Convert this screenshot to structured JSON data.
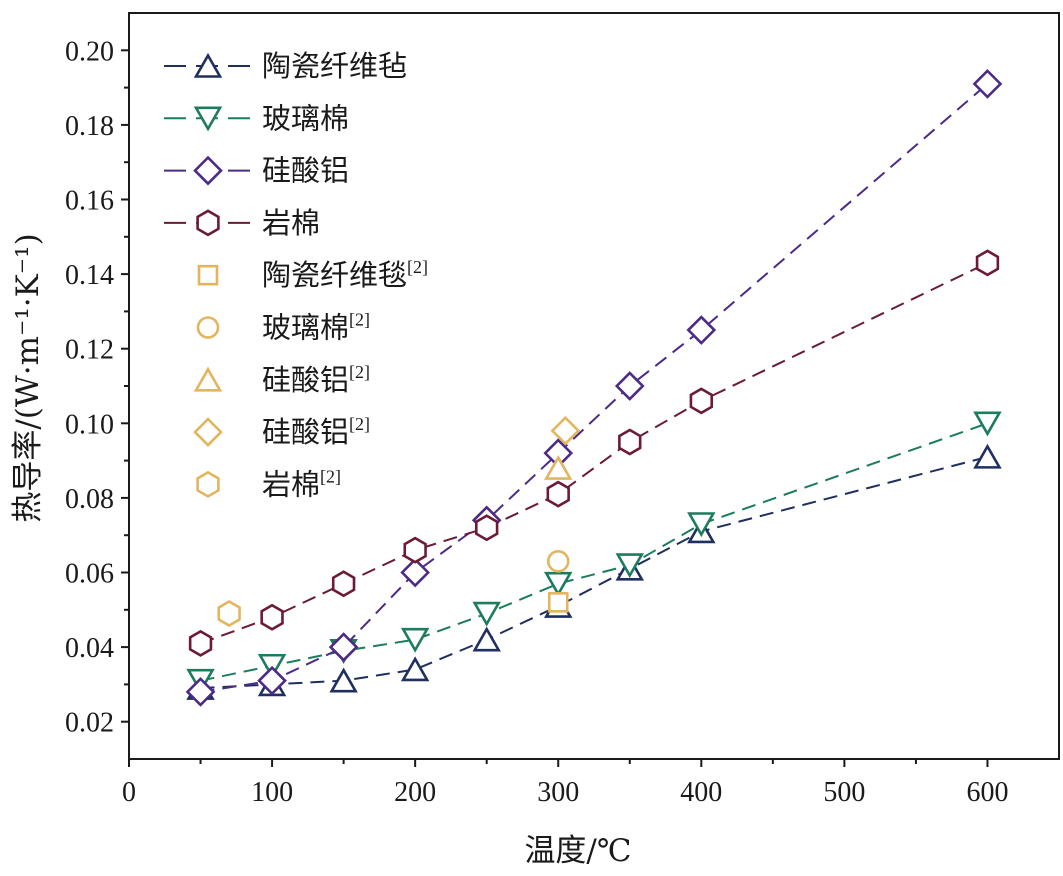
{
  "chart_data": {
    "type": "line",
    "xlabel": "温度/℃",
    "ylabel": "热导率/(W·m⁻¹·K⁻¹)",
    "xlim": [
      0,
      650
    ],
    "ylim": [
      0.01,
      0.21
    ],
    "xticks": [
      0,
      100,
      200,
      300,
      400,
      500,
      600
    ],
    "xtick_labels": [
      "0",
      "100",
      "200",
      "300",
      "400",
      "500",
      "600"
    ],
    "yticks": [
      0.02,
      0.04,
      0.06,
      0.08,
      0.1,
      0.12,
      0.14,
      0.16,
      0.18,
      0.2
    ],
    "ytick_labels": [
      "0.02",
      "0.04",
      "0.06",
      "0.08",
      "0.10",
      "0.12",
      "0.14",
      "0.16",
      "0.18",
      "0.20"
    ],
    "grid": false,
    "legend": "top-left",
    "series": [
      {
        "name": "陶瓷纤维毡",
        "marker": "triangle-up",
        "line": "dashed",
        "color": "#1f2f5f",
        "x": [
          50,
          100,
          150,
          200,
          250,
          300,
          350,
          400,
          600
        ],
        "y": [
          0.029,
          0.03,
          0.031,
          0.034,
          0.042,
          0.051,
          0.061,
          0.071,
          0.091
        ]
      },
      {
        "name": "玻璃棉",
        "marker": "triangle-down",
        "line": "dashed",
        "color": "#1b7d5c",
        "x": [
          50,
          100,
          150,
          200,
          250,
          300,
          350,
          400,
          600
        ],
        "y": [
          0.031,
          0.035,
          0.039,
          0.042,
          0.049,
          0.057,
          0.062,
          0.073,
          0.1
        ]
      },
      {
        "name": "硅酸铝",
        "marker": "diamond",
        "line": "dashed",
        "color": "#4b2a88",
        "x": [
          50,
          100,
          150,
          200,
          250,
          300,
          350,
          400,
          600
        ],
        "y": [
          0.028,
          0.031,
          0.04,
          0.06,
          0.074,
          0.092,
          0.11,
          0.125,
          0.191
        ]
      },
      {
        "name": "岩棉",
        "marker": "hexagon",
        "line": "dashed",
        "color": "#6b1b33",
        "x": [
          50,
          100,
          150,
          200,
          250,
          300,
          350,
          400,
          600
        ],
        "y": [
          0.041,
          0.048,
          0.057,
          0.066,
          0.072,
          0.081,
          0.095,
          0.106,
          0.143
        ]
      },
      {
        "name": "陶瓷纤维毯",
        "ref": "[2]",
        "marker": "square",
        "line": "none",
        "color": "#e2b55e",
        "x": [
          300
        ],
        "y": [
          0.052
        ]
      },
      {
        "name": "玻璃棉",
        "ref": "[2]",
        "marker": "circle",
        "line": "none",
        "color": "#e2b55e",
        "x": [
          300
        ],
        "y": [
          0.063
        ]
      },
      {
        "name": "硅酸铝",
        "ref": "[2]",
        "marker": "triangle-up",
        "line": "none",
        "color": "#e2b55e",
        "x": [
          300
        ],
        "y": [
          0.088
        ]
      },
      {
        "name": "硅酸铝",
        "ref": "[2]",
        "marker": "diamond",
        "line": "none",
        "color": "#e2b55e",
        "x": [
          305
        ],
        "y": [
          0.098
        ]
      },
      {
        "name": "岩棉",
        "ref": "[2]",
        "marker": "hexagon",
        "line": "none",
        "color": "#e2b55e",
        "x": [
          70
        ],
        "y": [
          0.049
        ]
      }
    ]
  }
}
